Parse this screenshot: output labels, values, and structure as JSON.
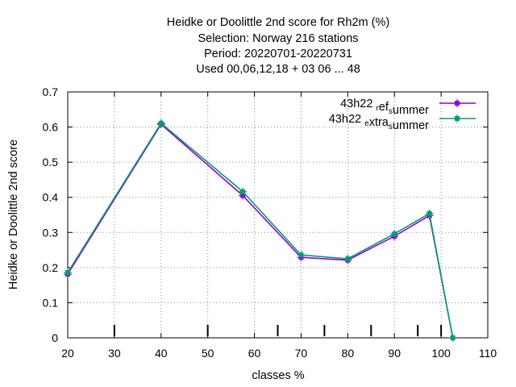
{
  "chart_data": {
    "type": "line",
    "title_lines": [
      "Heidke or Doolittle 2nd score  for Rh2m (%)",
      "Selection: Norway    216 stations",
      "Period: 20220701-20220731",
      "Used  00,06,12,18  + 03 06 ... 48"
    ],
    "xlabel": "classes %",
    "ylabel": "Heidke or Doolittle 2nd score",
    "xlim": [
      20,
      110
    ],
    "ylim": [
      0,
      0.7
    ],
    "x_ticks": [
      20,
      30,
      40,
      50,
      60,
      70,
      80,
      90,
      100,
      110
    ],
    "y_ticks": [
      0,
      0.1,
      0.2,
      0.3,
      0.4,
      0.5,
      0.6,
      0.7
    ],
    "y_tick_labels": [
      "0",
      "0.1",
      "0.2",
      "0.3",
      "0.4",
      "0.5",
      "0.6",
      "0.7"
    ],
    "class_markers": [
      30,
      50,
      65,
      75,
      85,
      95,
      100
    ],
    "grid": true,
    "legend_position": "top-right",
    "series": [
      {
        "name_parts": [
          {
            "text": "43h22 ",
            "sub": false
          },
          {
            "text": "r",
            "sub": true
          },
          {
            "text": "ef",
            "sub": false
          },
          {
            "text": "s",
            "sub": true
          },
          {
            "text": "ummer",
            "sub": false
          }
        ],
        "color": "#9400d3",
        "x": [
          20,
          40,
          57.5,
          70,
          80,
          90,
          97.5,
          102.5
        ],
        "y": [
          0.181,
          0.608,
          0.405,
          0.229,
          0.221,
          0.289,
          0.348,
          0.0
        ]
      },
      {
        "name_parts": [
          {
            "text": "43h22 ",
            "sub": false
          },
          {
            "text": "e",
            "sub": true
          },
          {
            "text": "xtra",
            "sub": false
          },
          {
            "text": "s",
            "sub": true
          },
          {
            "text": "ummer",
            "sub": false
          }
        ],
        "color": "#009e73",
        "x": [
          20,
          40,
          57.5,
          70,
          80,
          90,
          97.5,
          102.5
        ],
        "y": [
          0.186,
          0.611,
          0.416,
          0.236,
          0.225,
          0.296,
          0.354,
          0.0
        ]
      }
    ]
  }
}
